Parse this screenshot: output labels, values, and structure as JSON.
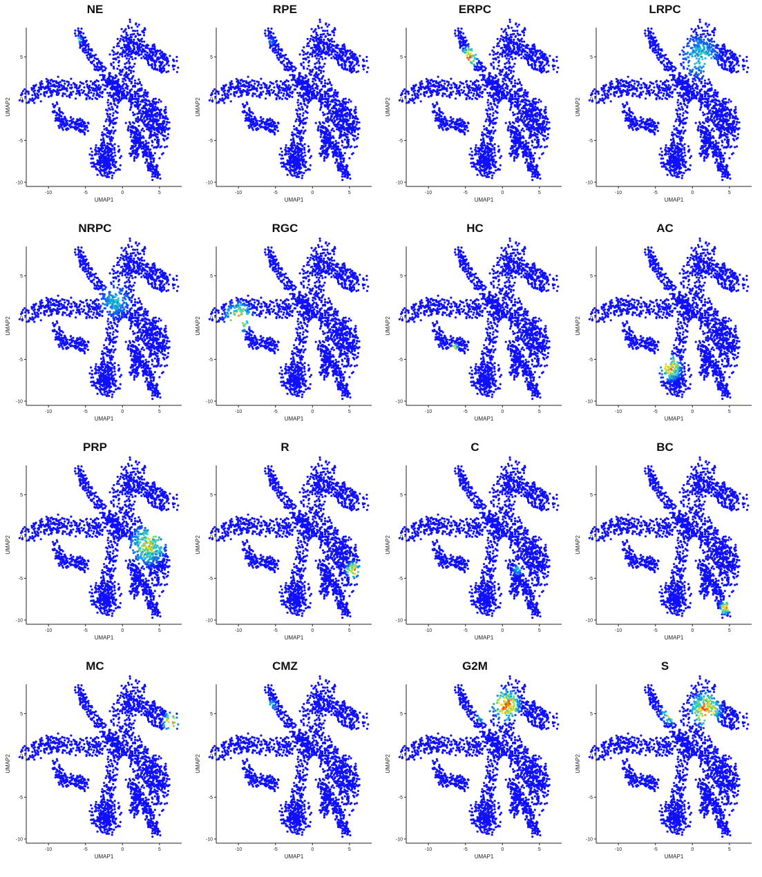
{
  "colors": {
    "low": "#1010ff",
    "mid": "#19c8d8",
    "high1": "#f2e619",
    "high2": "#ff3a1a"
  },
  "chart_data": [
    {
      "type": "scatter",
      "title": "NE",
      "xlabel": "UMAP1",
      "ylabel": "UMAP2",
      "xlim": [
        -13,
        8
      ],
      "ylim": [
        -10.5,
        8.5
      ],
      "xticks": [
        -10,
        -5,
        0,
        5
      ],
      "yticks": [
        -10,
        -5,
        0,
        5
      ],
      "hotspots": [
        {
          "x": -6,
          "y": 7,
          "r": 0.6,
          "v": 0.55
        }
      ]
    },
    {
      "type": "scatter",
      "title": "RPE",
      "xlabel": "UMAP1",
      "ylabel": "UMAP2",
      "xlim": [
        -13,
        8
      ],
      "ylim": [
        -10.5,
        8.5
      ],
      "xticks": [
        -10,
        -5,
        0,
        5
      ],
      "yticks": [
        -10,
        -5,
        0,
        5
      ],
      "hotspots": [
        {
          "x": -5.5,
          "y": 6.8,
          "r": 0.6,
          "v": 0.2
        }
      ]
    },
    {
      "type": "scatter",
      "title": "ERPC",
      "xlabel": "UMAP1",
      "ylabel": "UMAP2",
      "xlim": [
        -13,
        8
      ],
      "ylim": [
        -10.5,
        8.5
      ],
      "xticks": [
        -10,
        -5,
        0,
        5
      ],
      "yticks": [
        -10,
        -5,
        0,
        5
      ],
      "hotspots": [
        {
          "x": -4.5,
          "y": 5,
          "r": 1.5,
          "v": 0.85
        }
      ]
    },
    {
      "type": "scatter",
      "title": "LRPC",
      "xlabel": "UMAP1",
      "ylabel": "UMAP2",
      "xlim": [
        -13,
        8
      ],
      "ylim": [
        -10.5,
        8.5
      ],
      "xticks": [
        -10,
        -5,
        0,
        5
      ],
      "yticks": [
        -10,
        -5,
        0,
        5
      ],
      "hotspots": [
        {
          "x": 1,
          "y": 5,
          "r": 3,
          "v": 0.4
        }
      ]
    },
    {
      "type": "scatter",
      "title": "NRPC",
      "xlabel": "UMAP1",
      "ylabel": "UMAP2",
      "xlim": [
        -13,
        8
      ],
      "ylim": [
        -10.5,
        8.5
      ],
      "xticks": [
        -10,
        -5,
        0,
        5
      ],
      "yticks": [
        -10,
        -5,
        0,
        5
      ],
      "hotspots": [
        {
          "x": -1,
          "y": 2,
          "r": 2.5,
          "v": 0.35
        }
      ]
    },
    {
      "type": "scatter",
      "title": "RGC",
      "xlabel": "UMAP1",
      "ylabel": "UMAP2",
      "xlim": [
        -13,
        8
      ],
      "ylim": [
        -10.5,
        8.5
      ],
      "xticks": [
        -10,
        -5,
        0,
        5
      ],
      "yticks": [
        -10,
        -5,
        0,
        5
      ],
      "hotspots": [
        {
          "x": -10,
          "y": 0,
          "r": 2.2,
          "v": 0.8
        }
      ]
    },
    {
      "type": "scatter",
      "title": "HC",
      "xlabel": "UMAP1",
      "ylabel": "UMAP2",
      "xlim": [
        -13,
        8
      ],
      "ylim": [
        -10.5,
        8.5
      ],
      "xticks": [
        -10,
        -5,
        0,
        5
      ],
      "yticks": [
        -10,
        -5,
        0,
        5
      ],
      "hotspots": [
        {
          "x": -6.5,
          "y": -3.5,
          "r": 0.6,
          "v": 0.7
        }
      ]
    },
    {
      "type": "scatter",
      "title": "AC",
      "xlabel": "UMAP1",
      "ylabel": "UMAP2",
      "xlim": [
        -13,
        8
      ],
      "ylim": [
        -10.5,
        8.5
      ],
      "xticks": [
        -10,
        -5,
        0,
        5
      ],
      "yticks": [
        -10,
        -5,
        0,
        5
      ],
      "hotspots": [
        {
          "x": -3,
          "y": -6,
          "r": 1.8,
          "v": 0.85
        }
      ]
    },
    {
      "type": "scatter",
      "title": "PRP",
      "xlabel": "UMAP1",
      "ylabel": "UMAP2",
      "xlim": [
        -13,
        8
      ],
      "ylim": [
        -10.5,
        8.5
      ],
      "xticks": [
        -10,
        -5,
        0,
        5
      ],
      "yticks": [
        -10,
        -5,
        0,
        5
      ],
      "hotspots": [
        {
          "x": 3.5,
          "y": -1,
          "r": 2.8,
          "v": 0.7
        }
      ]
    },
    {
      "type": "scatter",
      "title": "R",
      "xlabel": "UMAP1",
      "ylabel": "UMAP2",
      "xlim": [
        -13,
        8
      ],
      "ylim": [
        -10.5,
        8.5
      ],
      "xticks": [
        -10,
        -5,
        0,
        5
      ],
      "yticks": [
        -10,
        -5,
        0,
        5
      ],
      "hotspots": [
        {
          "x": 5.5,
          "y": -4,
          "r": 1.2,
          "v": 0.9
        }
      ]
    },
    {
      "type": "scatter",
      "title": "C",
      "xlabel": "UMAP1",
      "ylabel": "UMAP2",
      "xlim": [
        -13,
        8
      ],
      "ylim": [
        -10.5,
        8.5
      ],
      "xticks": [
        -10,
        -5,
        0,
        5
      ],
      "yticks": [
        -10,
        -5,
        0,
        5
      ],
      "hotspots": [
        {
          "x": 2,
          "y": -4,
          "r": 0.8,
          "v": 0.35
        }
      ]
    },
    {
      "type": "scatter",
      "title": "BC",
      "xlabel": "UMAP1",
      "ylabel": "UMAP2",
      "xlim": [
        -13,
        8
      ],
      "ylim": [
        -10.5,
        8.5
      ],
      "xticks": [
        -10,
        -5,
        0,
        5
      ],
      "yticks": [
        -10,
        -5,
        0,
        5
      ],
      "hotspots": [
        {
          "x": 4.5,
          "y": -8.5,
          "r": 1,
          "v": 0.85
        }
      ]
    },
    {
      "type": "scatter",
      "title": "MC",
      "xlabel": "UMAP1",
      "ylabel": "UMAP2",
      "xlim": [
        -13,
        8
      ],
      "ylim": [
        -10.5,
        8.5
      ],
      "xticks": [
        -10,
        -5,
        0,
        5
      ],
      "yticks": [
        -10,
        -5,
        0,
        5
      ],
      "hotspots": [
        {
          "x": 6.5,
          "y": 4,
          "r": 1.3,
          "v": 0.95
        }
      ]
    },
    {
      "type": "scatter",
      "title": "CMZ",
      "xlabel": "UMAP1",
      "ylabel": "UMAP2",
      "xlim": [
        -13,
        8
      ],
      "ylim": [
        -10.5,
        8.5
      ],
      "xticks": [
        -10,
        -5,
        0,
        5
      ],
      "yticks": [
        -10,
        -5,
        0,
        5
      ],
      "hotspots": [
        {
          "x": -5.5,
          "y": 6,
          "r": 0.8,
          "v": 0.4
        }
      ]
    },
    {
      "type": "scatter",
      "title": "G2M",
      "xlabel": "UMAP1",
      "ylabel": "UMAP2",
      "xlim": [
        -13,
        8
      ],
      "ylim": [
        -10.5,
        8.5
      ],
      "xticks": [
        -10,
        -5,
        0,
        5
      ],
      "yticks": [
        -10,
        -5,
        0,
        5
      ],
      "hotspots": [
        {
          "x": 0.5,
          "y": 6,
          "r": 2.2,
          "v": 1.0
        },
        {
          "x": -2.5,
          "y": 5,
          "r": 1.3,
          "v": 0.7
        }
      ]
    },
    {
      "type": "scatter",
      "title": "S",
      "xlabel": "UMAP1",
      "ylabel": "UMAP2",
      "xlim": [
        -13,
        8
      ],
      "ylim": [
        -10.5,
        8.5
      ],
      "xticks": [
        -10,
        -5,
        0,
        5
      ],
      "yticks": [
        -10,
        -5,
        0,
        5
      ],
      "hotspots": [
        {
          "x": 1.8,
          "y": 5.5,
          "r": 2.4,
          "v": 0.95
        },
        {
          "x": -3,
          "y": 5,
          "r": 1.5,
          "v": 0.7
        }
      ]
    }
  ]
}
